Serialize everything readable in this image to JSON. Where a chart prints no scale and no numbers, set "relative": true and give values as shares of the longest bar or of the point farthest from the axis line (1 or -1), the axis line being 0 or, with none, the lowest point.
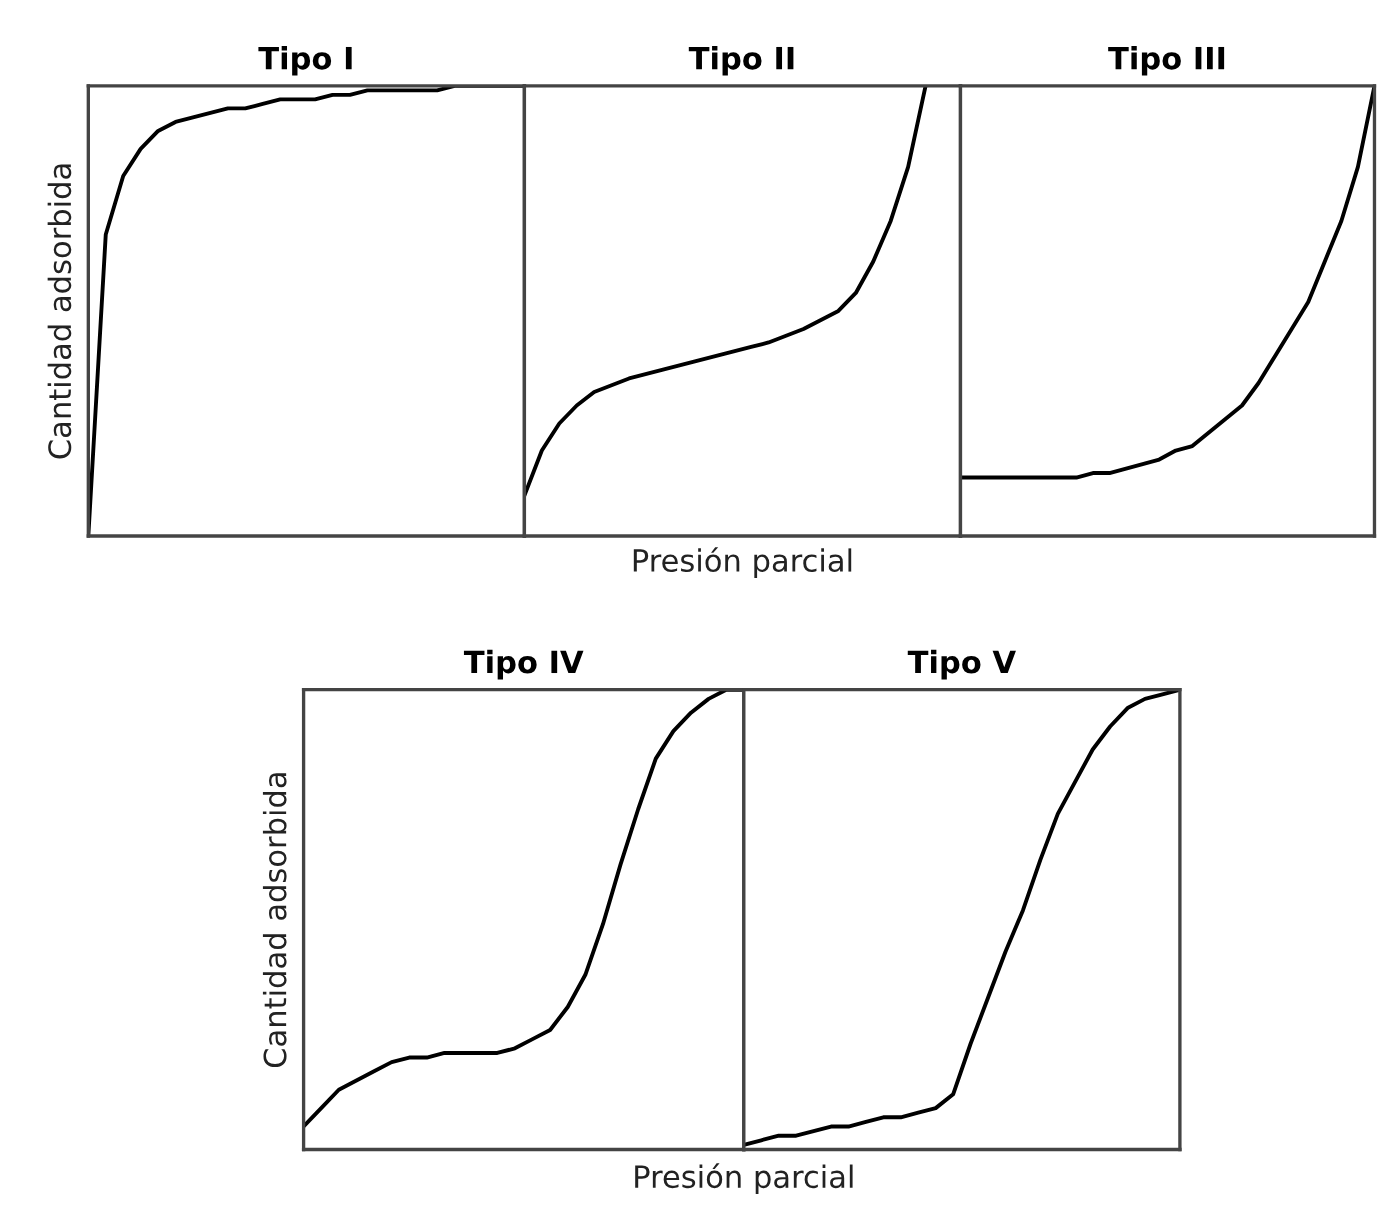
{
  "chart_data": [
    {
      "type": "line",
      "title": "Tipo I",
      "ylabel": "Cantidad adsorbida",
      "relative": true,
      "tick_labels": false,
      "marker": "none",
      "line_style": "solid",
      "categories": [
        null,
        null,
        null,
        null,
        null,
        null,
        null,
        null,
        null,
        null,
        null,
        null,
        null,
        null,
        null,
        null,
        null,
        null,
        null,
        null,
        null,
        null,
        null,
        null,
        null,
        null
      ],
      "series": [
        {
          "color": "#000000",
          "values": [
            0,
            0.67,
            0.8,
            0.86,
            0.9,
            0.92,
            0.93,
            0.94,
            0.95,
            0.95,
            0.96,
            0.97,
            0.97,
            0.97,
            0.98,
            0.98,
            0.99,
            0.99,
            0.99,
            0.99,
            0.99,
            1.0,
            1.0,
            1.0,
            1.0,
            1.0
          ]
        }
      ]
    },
    {
      "type": "line",
      "title": "Tipo II",
      "xlabel": "Presión parcial",
      "relative": true,
      "tick_labels": false,
      "marker": "none",
      "line_style": "solid",
      "categories": [
        null,
        null,
        null,
        null,
        null,
        null,
        null,
        null,
        null,
        null,
        null,
        null,
        null,
        null,
        null,
        null,
        null,
        null,
        null,
        null,
        null,
        null,
        null,
        null,
        null,
        null
      ],
      "series": [
        {
          "color": "#000000",
          "values": [
            0.09,
            0.19,
            0.25,
            0.29,
            0.32,
            0.335,
            0.35,
            0.36,
            0.37,
            0.38,
            0.39,
            0.4,
            0.41,
            0.42,
            0.43,
            0.445,
            0.46,
            0.48,
            0.5,
            0.54,
            0.61,
            0.7,
            0.82,
            1.0,
            null,
            null
          ]
        }
      ]
    },
    {
      "type": "line",
      "title": "Tipo III",
      "relative": true,
      "tick_labels": false,
      "marker": "none",
      "line_style": "solid",
      "categories": [
        null,
        null,
        null,
        null,
        null,
        null,
        null,
        null,
        null,
        null,
        null,
        null,
        null,
        null,
        null,
        null,
        null,
        null,
        null,
        null,
        null,
        null,
        null,
        null,
        null,
        null
      ],
      "series": [
        {
          "color": "#000000",
          "values": [
            0.13,
            0.13,
            0.13,
            0.13,
            0.13,
            0.13,
            0.13,
            0.13,
            0.14,
            0.14,
            0.15,
            0.16,
            0.17,
            0.19,
            0.2,
            0.23,
            0.26,
            0.29,
            0.34,
            0.4,
            0.46,
            0.52,
            0.61,
            0.7,
            0.82,
            1.0
          ]
        }
      ]
    },
    {
      "type": "line",
      "title": "Tipo IV",
      "ylabel": "Cantidad adsorbida",
      "xlabel": "Presión parcial",
      "relative": true,
      "tick_labels": false,
      "marker": "none",
      "line_style": "solid",
      "categories": [
        null,
        null,
        null,
        null,
        null,
        null,
        null,
        null,
        null,
        null,
        null,
        null,
        null,
        null,
        null,
        null,
        null,
        null,
        null,
        null,
        null,
        null,
        null,
        null,
        null,
        null
      ],
      "series": [
        {
          "color": "#000000",
          "values": [
            0.05,
            0.09,
            0.13,
            0.15,
            0.17,
            0.19,
            0.2,
            0.2,
            0.21,
            0.21,
            0.21,
            0.21,
            0.22,
            0.24,
            0.26,
            0.31,
            0.38,
            0.49,
            0.62,
            0.74,
            0.85,
            0.91,
            0.95,
            0.98,
            1.0,
            1.0
          ]
        }
      ]
    },
    {
      "type": "line",
      "title": "Tipo V",
      "relative": true,
      "tick_labels": false,
      "marker": "none",
      "line_style": "solid",
      "categories": [
        null,
        null,
        null,
        null,
        null,
        null,
        null,
        null,
        null,
        null,
        null,
        null,
        null,
        null,
        null,
        null,
        null,
        null,
        null,
        null,
        null,
        null,
        null,
        null,
        null,
        null
      ],
      "series": [
        {
          "color": "#000000",
          "values": [
            0.01,
            0.02,
            0.03,
            0.03,
            0.04,
            0.05,
            0.05,
            0.06,
            0.07,
            0.07,
            0.08,
            0.09,
            0.12,
            0.23,
            0.33,
            0.43,
            0.52,
            0.63,
            0.73,
            0.8,
            0.87,
            0.92,
            0.96,
            0.98,
            0.99,
            1.0
          ]
        }
      ]
    }
  ]
}
